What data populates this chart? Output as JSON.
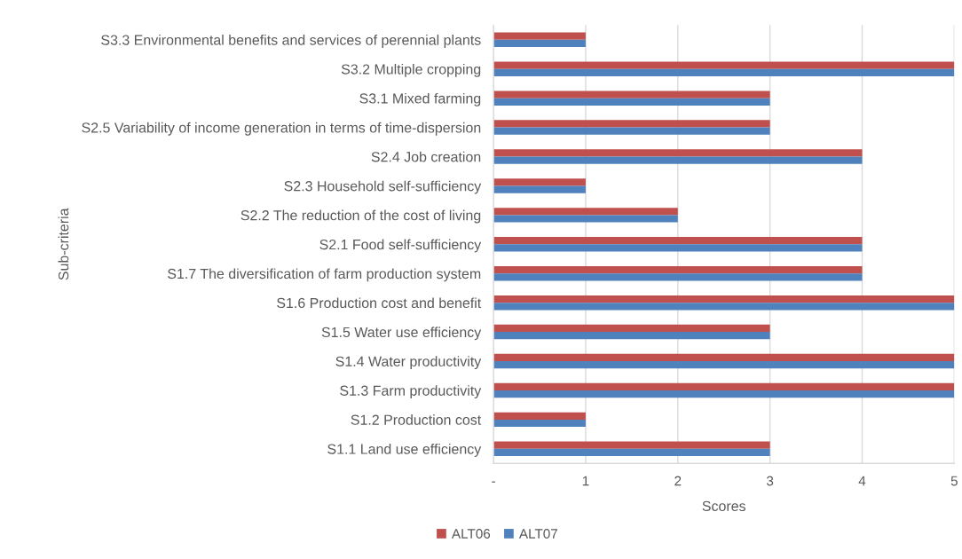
{
  "chart_data": {
    "type": "bar",
    "orientation": "horizontal",
    "xlabel": "Scores",
    "ylabel": "Sub-criteria",
    "categories": [
      "S3.3 Environmental benefits and services of perennial plants",
      "S3.2 Multiple cropping",
      "S3.1 Mixed farming",
      "S2.5 Variability of income generation in terms of time-dispersion",
      "S2.4 Job creation",
      "S2.3 Household self-sufficiency",
      "S2.2 The reduction of the cost of living",
      "S2.1 Food self-sufficiency",
      "S1.7 The diversification of farm production system",
      "S1.6 Production cost and benefit",
      "S1.5 Water use efficiency",
      "S1.4 Water productivity",
      "S1.3 Farm productivity",
      "S1.2 Production cost",
      "S1.1 Land use efficiency"
    ],
    "series": [
      {
        "name": "ALT06",
        "color": "#c0504d",
        "values": [
          1,
          5,
          3,
          3,
          4,
          1,
          2,
          4,
          4,
          5,
          3,
          5,
          5,
          1,
          3
        ]
      },
      {
        "name": "ALT07",
        "color": "#4f81bd",
        "values": [
          1,
          5,
          3,
          3,
          4,
          1,
          2,
          4,
          4,
          5,
          3,
          5,
          5,
          1,
          3
        ]
      }
    ],
    "xlim": [
      0,
      5
    ],
    "xticks": [
      {
        "value": 0,
        "label": "-"
      },
      1,
      2,
      3,
      4,
      5
    ],
    "grid": "x",
    "legend": "bottom"
  }
}
